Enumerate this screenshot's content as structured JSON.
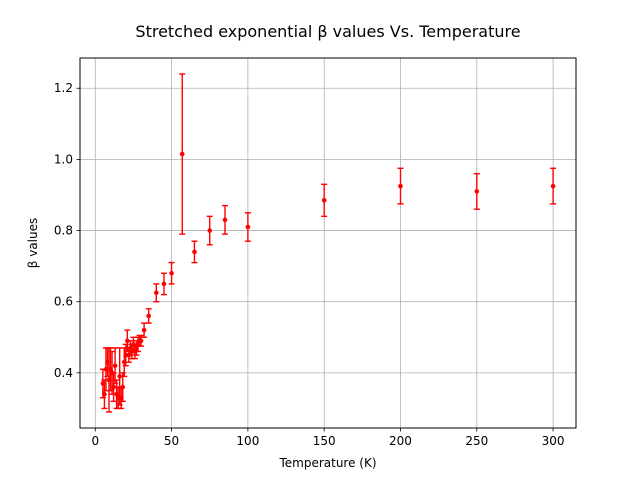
{
  "chart_data": {
    "type": "scatter",
    "title": "Stretched exponential β values Vs. Temperature",
    "xlabel": "Temperature (K)",
    "ylabel": "β values",
    "xlim": [
      -10,
      315
    ],
    "ylim": [
      0.245,
      1.285
    ],
    "xticks": [
      0,
      50,
      100,
      150,
      200,
      250,
      300
    ],
    "xtick_labels": [
      "0",
      "50",
      "100",
      "150",
      "200",
      "250",
      "300"
    ],
    "yticks": [
      0.4,
      0.6,
      0.8,
      1.0,
      1.2
    ],
    "ytick_labels": [
      "0.4",
      "0.6",
      "0.8",
      "1.0",
      "1.2"
    ],
    "grid": true,
    "legend": "none",
    "series": [
      {
        "color": "#ff0000",
        "marker": "point",
        "errorbars": true,
        "points": [
          {
            "x": 5,
            "y": 0.37,
            "err": 0.04
          },
          {
            "x": 6,
            "y": 0.34,
            "err": 0.04
          },
          {
            "x": 7,
            "y": 0.41,
            "err": 0.06
          },
          {
            "x": 8,
            "y": 0.43,
            "err": 0.04
          },
          {
            "x": 9,
            "y": 0.38,
            "err": 0.09
          },
          {
            "x": 10,
            "y": 0.41,
            "err": 0.06
          },
          {
            "x": 11,
            "y": 0.4,
            "err": 0.06
          },
          {
            "x": 12,
            "y": 0.36,
            "err": 0.04
          },
          {
            "x": 13,
            "y": 0.42,
            "err": 0.05
          },
          {
            "x": 14,
            "y": 0.34,
            "err": 0.04
          },
          {
            "x": 15,
            "y": 0.33,
            "err": 0.03
          },
          {
            "x": 16,
            "y": 0.39,
            "err": 0.08
          },
          {
            "x": 17,
            "y": 0.33,
            "err": 0.03
          },
          {
            "x": 18,
            "y": 0.36,
            "err": 0.04
          },
          {
            "x": 19,
            "y": 0.43,
            "err": 0.04
          },
          {
            "x": 20,
            "y": 0.45,
            "err": 0.03
          },
          {
            "x": 21,
            "y": 0.49,
            "err": 0.03
          },
          {
            "x": 22,
            "y": 0.45,
            "err": 0.02
          },
          {
            "x": 23,
            "y": 0.47,
            "err": 0.02
          },
          {
            "x": 24,
            "y": 0.46,
            "err": 0.02
          },
          {
            "x": 25,
            "y": 0.48,
            "err": 0.02
          },
          {
            "x": 26,
            "y": 0.46,
            "err": 0.02
          },
          {
            "x": 27,
            "y": 0.47,
            "err": 0.02
          },
          {
            "x": 28,
            "y": 0.48,
            "err": 0.02
          },
          {
            "x": 29,
            "y": 0.49,
            "err": 0.015
          },
          {
            "x": 30,
            "y": 0.49,
            "err": 0.015
          },
          {
            "x": 32,
            "y": 0.52,
            "err": 0.02
          },
          {
            "x": 35,
            "y": 0.56,
            "err": 0.02
          },
          {
            "x": 40,
            "y": 0.625,
            "err": 0.025
          },
          {
            "x": 45,
            "y": 0.65,
            "err": 0.03
          },
          {
            "x": 50,
            "y": 0.68,
            "err": 0.03
          },
          {
            "x": 57,
            "y": 1.015,
            "err": 0.225
          },
          {
            "x": 65,
            "y": 0.74,
            "err": 0.03
          },
          {
            "x": 75,
            "y": 0.8,
            "err": 0.04
          },
          {
            "x": 85,
            "y": 0.83,
            "err": 0.04
          },
          {
            "x": 100,
            "y": 0.81,
            "err": 0.04
          },
          {
            "x": 150,
            "y": 0.885,
            "err": 0.045
          },
          {
            "x": 200,
            "y": 0.925,
            "err": 0.05
          },
          {
            "x": 250,
            "y": 0.91,
            "err": 0.05
          },
          {
            "x": 300,
            "y": 0.925,
            "err": 0.05
          }
        ]
      }
    ]
  }
}
